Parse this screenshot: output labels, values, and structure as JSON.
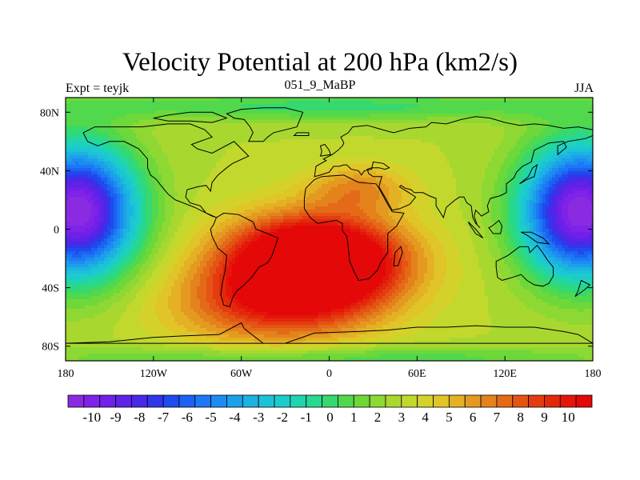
{
  "chart_data": {
    "type": "heatmap",
    "title": "Velocity Potential at 200 hPa (km2/s)",
    "left_label": "Expt = teyjk",
    "center_label": "051_9_MaBP",
    "right_label": "JJA",
    "x_range": [
      -180,
      180
    ],
    "y_range": [
      -90,
      90
    ],
    "x_ticks": [
      -180,
      -120,
      -60,
      0,
      60,
      120,
      180
    ],
    "x_tick_labels": [
      "180",
      "120W",
      "60W",
      "0",
      "60E",
      "120E",
      "180"
    ],
    "y_ticks": [
      80,
      40,
      0,
      -40,
      -80
    ],
    "y_tick_labels": [
      "80N",
      "40N",
      "0",
      "40S",
      "80S"
    ],
    "colorbar": {
      "min": -10.5,
      "max": 10.5,
      "step": 0.5,
      "tick_labels": [
        "-10",
        "-9",
        "-8",
        "-7",
        "-6",
        "-5",
        "-4",
        "-3",
        "-2",
        "-1",
        "0",
        "1",
        "2",
        "3",
        "4",
        "5",
        "6",
        "7",
        "8",
        "9",
        "10"
      ],
      "colors": [
        "#8a2be2",
        "#7f23e8",
        "#7020e8",
        "#5e22e8",
        "#4a28e8",
        "#3236ea",
        "#1f4aee",
        "#1c62f2",
        "#1c78f4",
        "#1c8cf2",
        "#1ca0ea",
        "#1cb2e2",
        "#1cc2d8",
        "#1ccccc",
        "#20d4b0",
        "#26d890",
        "#36d870",
        "#52d84c",
        "#6ed83a",
        "#8ed834",
        "#a8d830",
        "#c2d82c",
        "#d4d22a",
        "#e0c428",
        "#e4b024",
        "#e49a20",
        "#e4821c",
        "#e46a18",
        "#e45414",
        "#e43c10",
        "#e4280c",
        "#e4160a",
        "#e40808"
      ]
    }
  }
}
